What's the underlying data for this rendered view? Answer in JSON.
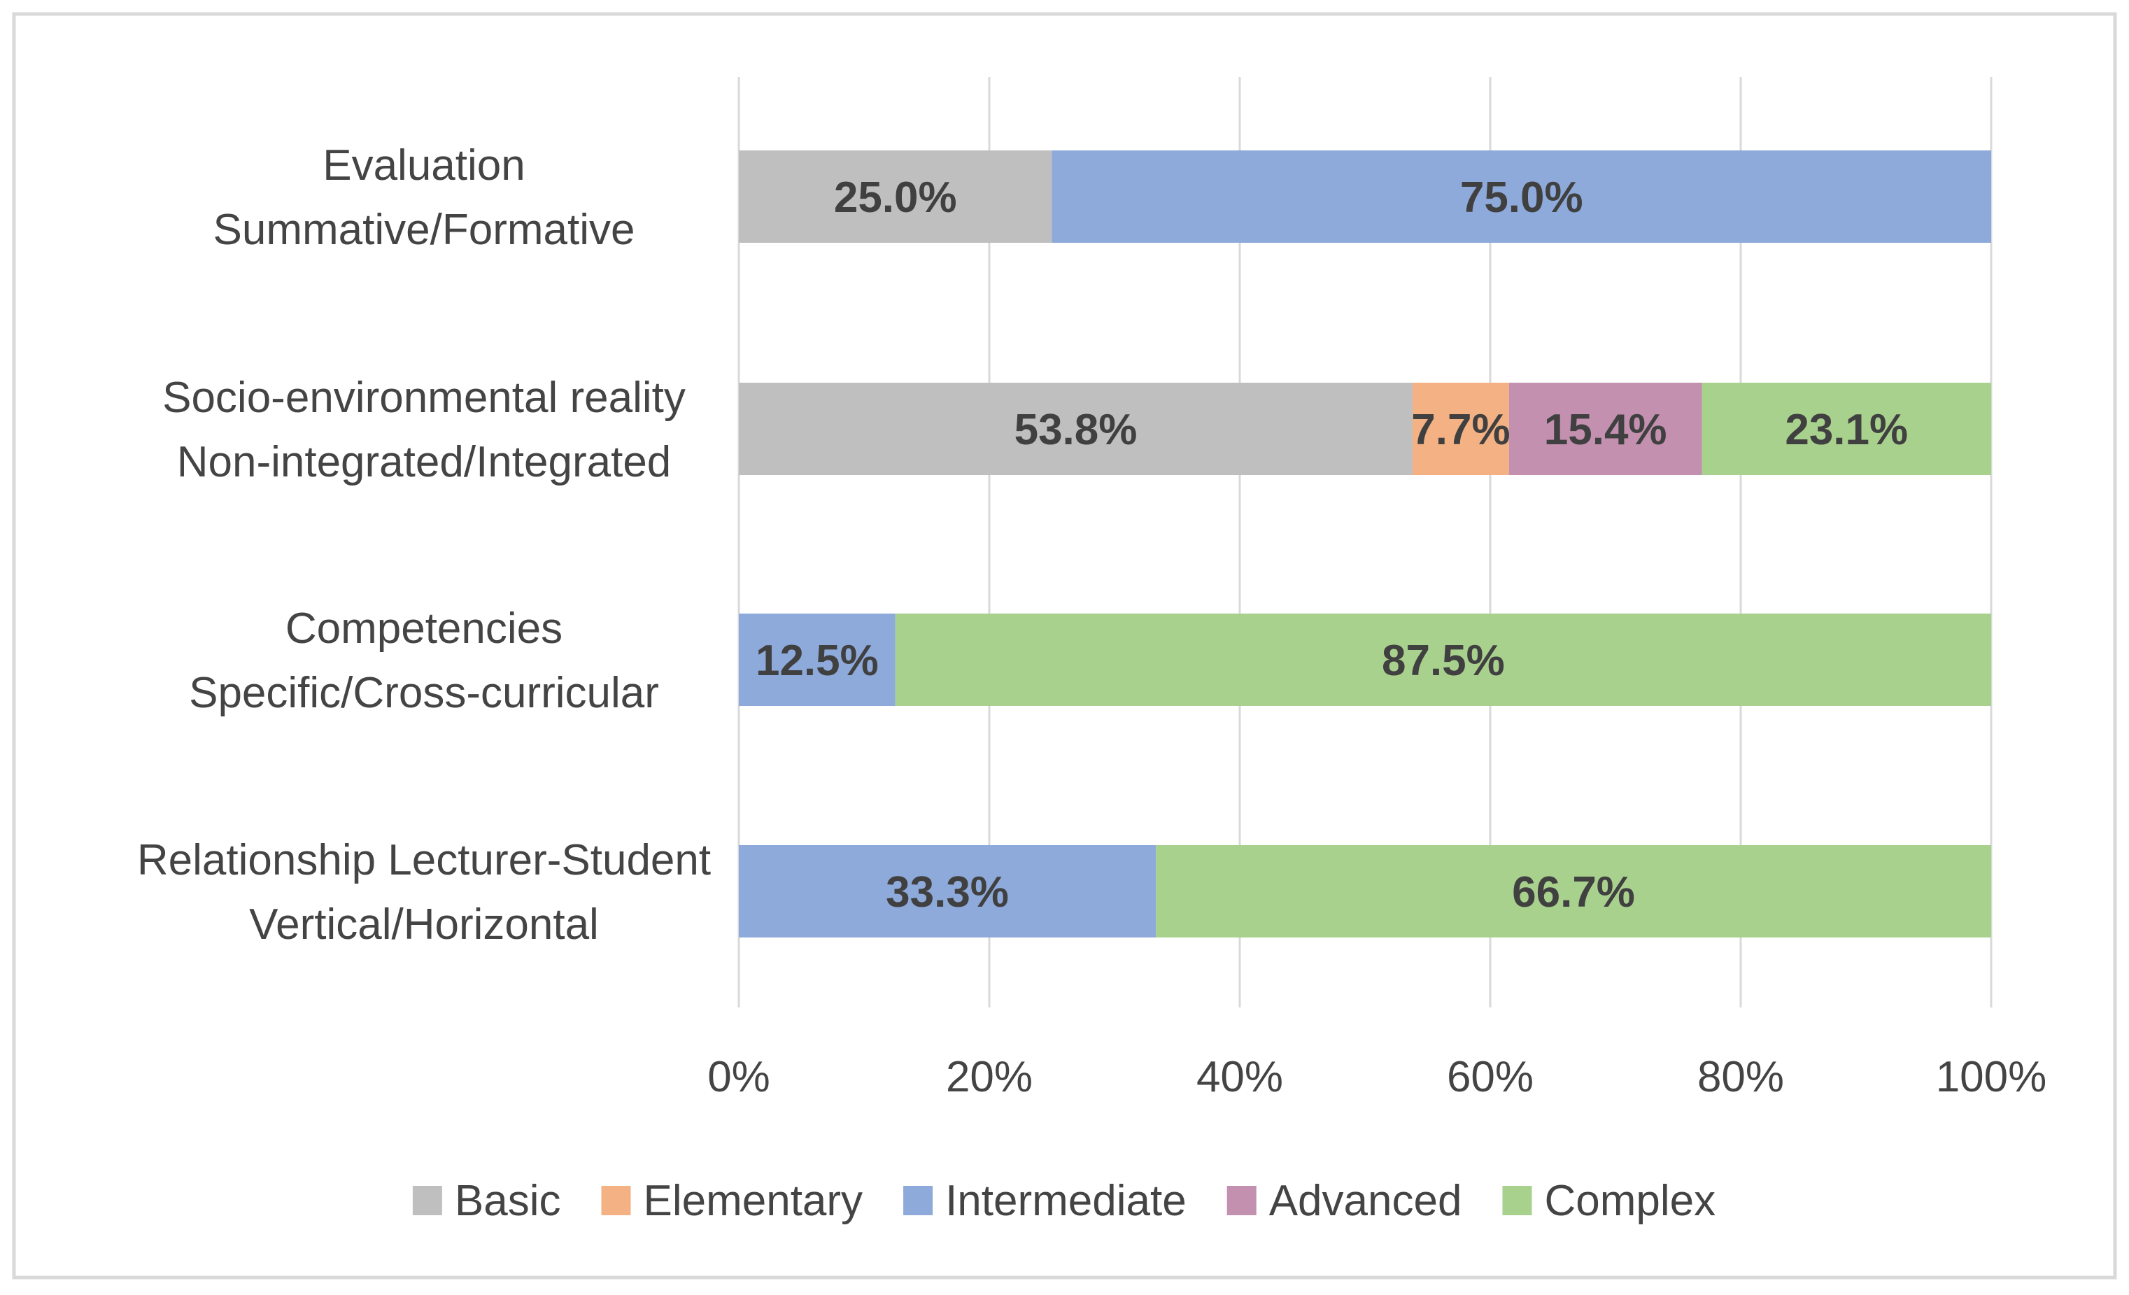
{
  "chart_data": {
    "type": "bar",
    "orientation": "horizontal",
    "stacked": "100%",
    "categories": [
      [
        "Evaluation",
        "Summative/Formative"
      ],
      [
        "Socio-environmental reality",
        "Non-integrated/Integrated"
      ],
      [
        "Competencies",
        "Specific/Cross-curricular"
      ],
      [
        "Relationship Lecturer-Student",
        "Vertical/Horizontal"
      ]
    ],
    "series": [
      {
        "name": "Basic",
        "color": "#bfbfbf",
        "values": [
          25.0,
          53.8,
          0,
          0
        ]
      },
      {
        "name": "Elementary",
        "color": "#f4b183",
        "values": [
          0,
          7.7,
          0,
          0
        ]
      },
      {
        "name": "Intermediate",
        "color": "#8eaadb",
        "values": [
          75.0,
          0,
          12.5,
          33.3
        ]
      },
      {
        "name": "Advanced",
        "color": "#c390b0",
        "values": [
          0,
          15.4,
          0,
          0
        ]
      },
      {
        "name": "Complex",
        "color": "#a9d18e",
        "values": [
          0,
          23.1,
          87.5,
          66.7
        ]
      }
    ],
    "data_labels": [
      [
        "25.0%",
        "",
        "75.0%",
        "",
        ""
      ],
      [
        "53.8%",
        "7.7%",
        "",
        "15.4%",
        "23.1%"
      ],
      [
        "",
        "",
        "12.5%",
        "",
        "87.5%"
      ],
      [
        "",
        "",
        "33.3%",
        "",
        "66.7%"
      ]
    ],
    "x_ticks": [
      "0%",
      "20%",
      "40%",
      "60%",
      "80%",
      "100%"
    ],
    "xlim": [
      0,
      100
    ],
    "grid": true,
    "legend_position": "bottom",
    "title": "",
    "xlabel": "",
    "ylabel": ""
  }
}
